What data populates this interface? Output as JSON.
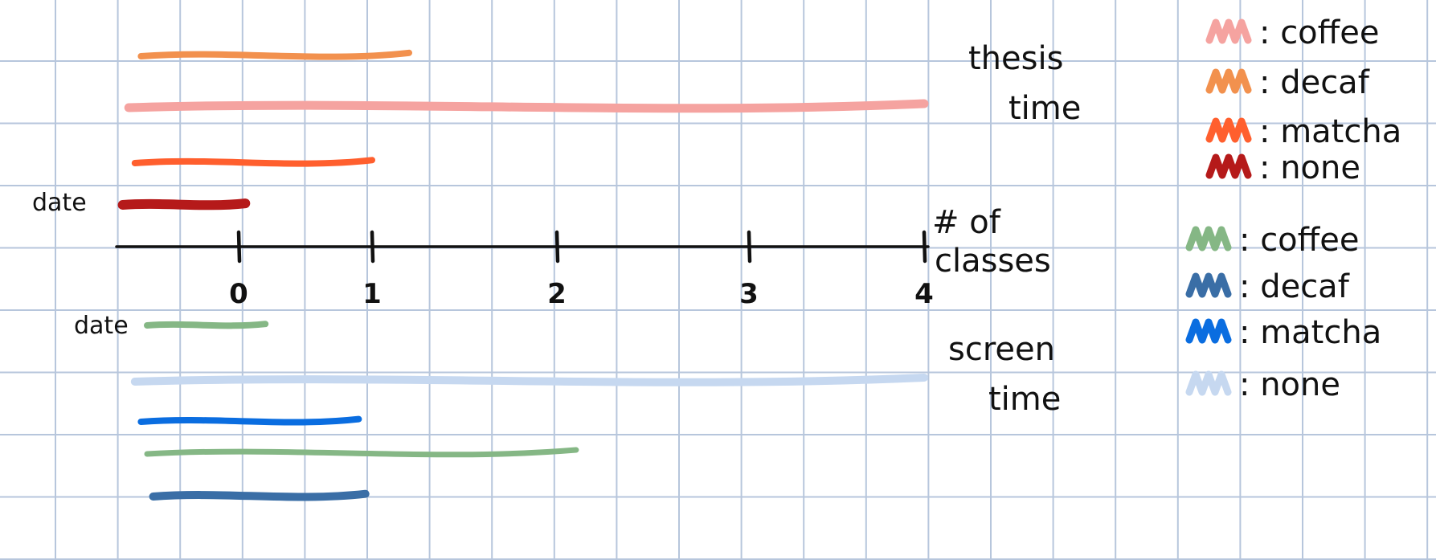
{
  "chart_data": {
    "type": "bar",
    "orientation": "horizontal",
    "xaxis_title": "# of classes",
    "xticks": [
      "0",
      "1",
      "2",
      "3",
      "4"
    ],
    "xlim": [
      -1,
      4
    ],
    "grid": true,
    "upper_panel": {
      "label": "thesis time",
      "bars": [
        {
          "series": "decaf",
          "start": -0.8,
          "end": 1.2,
          "color": "#f2914e"
        },
        {
          "series": "coffee",
          "start": -0.9,
          "end": 4.0,
          "color": "#f5a3a0"
        },
        {
          "series": "matcha",
          "start": -0.85,
          "end": 1.0,
          "color": "#ff5f2e"
        },
        {
          "series": "none",
          "start": -0.95,
          "end": 0.05,
          "color": "#b51a1a",
          "annotation": "date"
        }
      ]
    },
    "lower_panel": {
      "label": "screen time",
      "bars": [
        {
          "series": "coffee",
          "start": -0.75,
          "end": 0.2,
          "color": "#85b785",
          "annotation": "date"
        },
        {
          "series": "none",
          "start": -0.85,
          "end": 4.0,
          "color": "#c6d8f0"
        },
        {
          "series": "matcha",
          "start": -0.8,
          "end": 0.9,
          "color": "#0a6de0"
        },
        {
          "series": "coffee",
          "start": -0.75,
          "end": 2.1,
          "color": "#85b785"
        },
        {
          "series": "decaf",
          "start": -0.7,
          "end": 0.95,
          "color": "#3a6ea6"
        }
      ]
    },
    "legend": [
      {
        "group": "thesis",
        "label": "coffee",
        "color": "#f5a3a0"
      },
      {
        "group": "thesis",
        "label": "decaf",
        "color": "#f2914e"
      },
      {
        "group": "thesis",
        "label": "matcha",
        "color": "#ff5f2e"
      },
      {
        "group": "thesis",
        "label": "none",
        "color": "#b51a1a"
      },
      {
        "group": "screen",
        "label": "coffee",
        "color": "#85b785"
      },
      {
        "group": "screen",
        "label": "decaf",
        "color": "#3a6ea6"
      },
      {
        "group": "screen",
        "label": "matcha",
        "color": "#0a6de0"
      },
      {
        "group": "screen",
        "label": "none",
        "color": "#c6d8f0"
      }
    ],
    "annotations": {
      "date": "date",
      "thesis_line1": "thesis",
      "thesis_line2": "time",
      "screen_line1": "screen",
      "screen_line2": "time",
      "axis_line1": "# of",
      "axis_line2": "classes"
    },
    "legend_sep": ":",
    "colors": {
      "grid": "#b7c6dc",
      "axis": "#111111",
      "background": "#ffffff"
    }
  }
}
